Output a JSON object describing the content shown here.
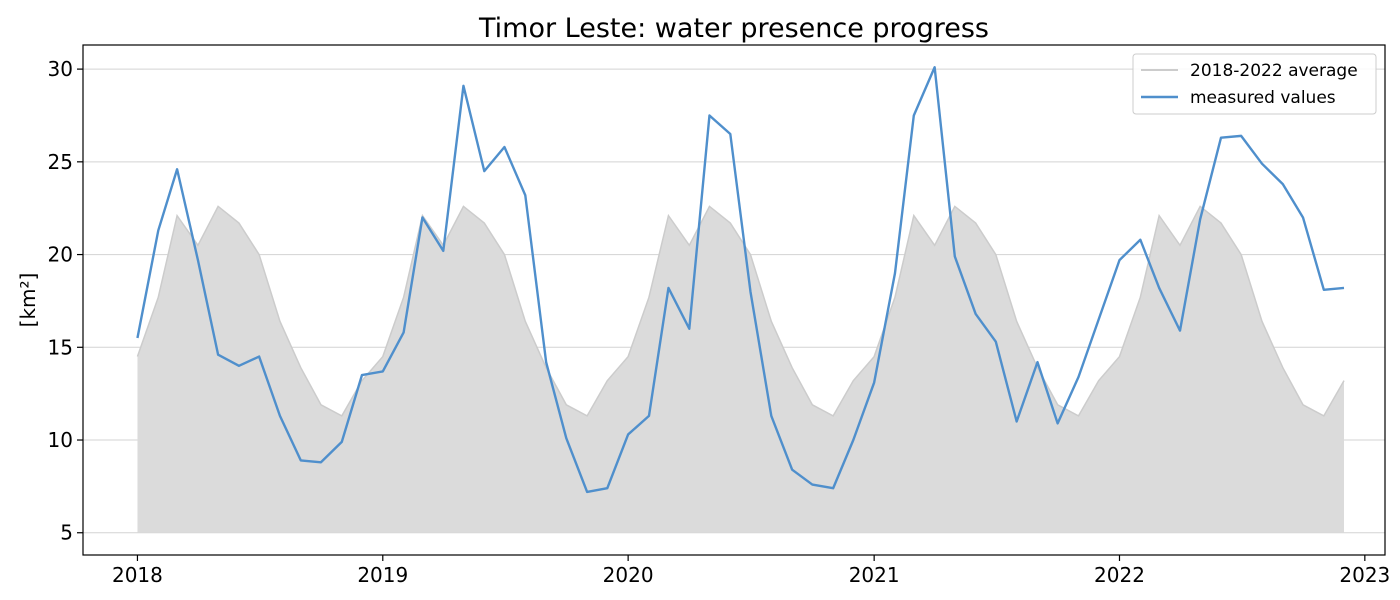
{
  "chart_data": {
    "type": "line",
    "title": "Timor Leste: water presence progress",
    "ylabel": "[km²]",
    "xlabel": "",
    "xlim": [
      "2017-10-12",
      "2023-01-31"
    ],
    "ylim": [
      3.8,
      31.3
    ],
    "x_ticks": [
      "2018",
      "2019",
      "2020",
      "2021",
      "2022",
      "2023"
    ],
    "y_ticks": [
      "5",
      "10",
      "15",
      "20",
      "25",
      "30"
    ],
    "grid": "horizontal",
    "legend_position": "top-right",
    "x": [
      "2018-01",
      "2018-02",
      "2018-03",
      "2018-04",
      "2018-05",
      "2018-06",
      "2018-07",
      "2018-08",
      "2018-09",
      "2018-10",
      "2018-11",
      "2018-12",
      "2019-01",
      "2019-02",
      "2019-03",
      "2019-04",
      "2019-05",
      "2019-06",
      "2019-07",
      "2019-08",
      "2019-09",
      "2019-10",
      "2019-11",
      "2019-12",
      "2020-01",
      "2020-02",
      "2020-03",
      "2020-04",
      "2020-05",
      "2020-06",
      "2020-07",
      "2020-08",
      "2020-09",
      "2020-10",
      "2020-11",
      "2020-12",
      "2021-01",
      "2021-02",
      "2021-03",
      "2021-04",
      "2021-05",
      "2021-06",
      "2021-07",
      "2021-08",
      "2021-09",
      "2021-10",
      "2021-11",
      "2021-12",
      "2022-01",
      "2022-02",
      "2022-03",
      "2022-04",
      "2022-05",
      "2022-06",
      "2022-07",
      "2022-08",
      "2022-09",
      "2022-10",
      "2022-11",
      "2022-12"
    ],
    "series": [
      {
        "name": "2018-2022 average",
        "style": "area",
        "color": "#cccccc",
        "fill": "#dbdbdb",
        "baseline": 5,
        "values": [
          14.5,
          17.7,
          22.1,
          20.5,
          22.6,
          21.7,
          20.0,
          16.4,
          13.9,
          11.9,
          11.3,
          13.2,
          14.5,
          17.7,
          22.1,
          20.5,
          22.6,
          21.7,
          20.0,
          16.4,
          13.9,
          11.9,
          11.3,
          13.2,
          14.5,
          17.7,
          22.1,
          20.5,
          22.6,
          21.7,
          20.0,
          16.4,
          13.9,
          11.9,
          11.3,
          13.2,
          14.5,
          17.7,
          22.1,
          20.5,
          22.6,
          21.7,
          20.0,
          16.4,
          13.9,
          11.9,
          11.3,
          13.2,
          14.5,
          17.7,
          22.1,
          20.5,
          22.6,
          21.7,
          20.0,
          16.4,
          13.9,
          11.9,
          11.3,
          13.2
        ]
      },
      {
        "name": "measured values",
        "style": "line",
        "color": "#4f8fcc",
        "values": [
          15.5,
          21.3,
          24.6,
          19.7,
          14.6,
          14.0,
          14.5,
          11.3,
          8.9,
          8.8,
          9.9,
          13.5,
          13.7,
          15.8,
          22.0,
          20.2,
          29.1,
          24.5,
          25.8,
          23.2,
          14.2,
          10.1,
          7.2,
          7.4,
          10.3,
          11.3,
          18.2,
          16.0,
          27.5,
          26.5,
          18.0,
          11.3,
          8.4,
          7.6,
          7.4,
          10.0,
          13.1,
          19.0,
          27.5,
          30.1,
          19.9,
          16.8,
          15.3,
          11.0,
          14.2,
          10.9,
          13.4,
          16.5,
          19.7,
          20.8,
          18.2,
          15.9,
          21.9,
          26.3,
          26.4,
          24.9,
          23.8,
          22.0,
          18.1,
          18.2
        ]
      }
    ]
  }
}
